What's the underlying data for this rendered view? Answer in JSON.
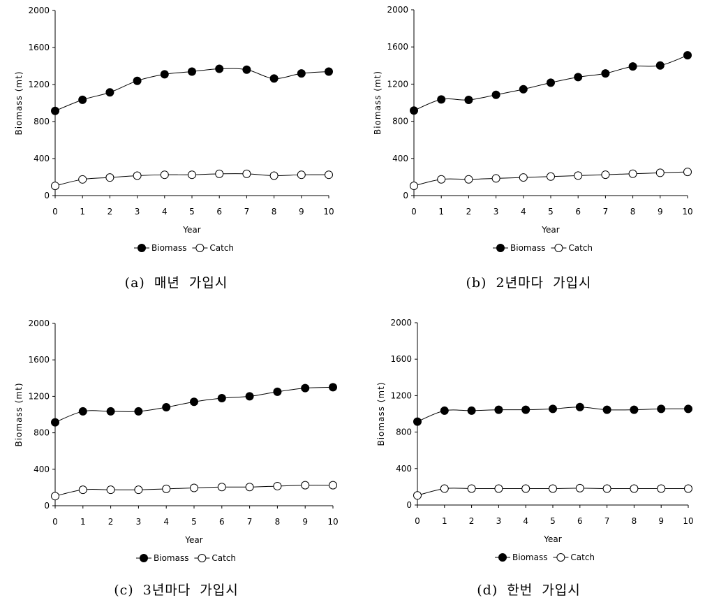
{
  "chart_data": [
    {
      "type": "line",
      "caption": "(a) 매년 가입시",
      "xlabel": "Year",
      "ylabel": "Biomass (mt)",
      "x": [
        0,
        1,
        2,
        3,
        4,
        5,
        6,
        7,
        8,
        9,
        10
      ],
      "xticks": [
        "0",
        "1",
        "2",
        "3",
        "4",
        "5",
        "6",
        "7",
        "8",
        "9",
        "10"
      ],
      "ylim": [
        0,
        2000
      ],
      "yticks": [
        "0",
        "400",
        "800",
        "1200",
        "1600",
        "2000"
      ],
      "legend_position": "bottom",
      "series": [
        {
          "name": "Biomass",
          "marker": "filled-circle",
          "values": [
            915,
            1035,
            1115,
            1240,
            1310,
            1340,
            1370,
            1360,
            1265,
            1320,
            1340
          ]
        },
        {
          "name": "Catch",
          "marker": "open-circle",
          "values": [
            105,
            175,
            195,
            215,
            225,
            225,
            235,
            235,
            215,
            225,
            225
          ]
        }
      ]
    },
    {
      "type": "line",
      "caption": "(b) 2년마다 가입시",
      "xlabel": "Year",
      "ylabel": "Biomass (mt)",
      "x": [
        0,
        1,
        2,
        3,
        4,
        5,
        6,
        7,
        8,
        9,
        10
      ],
      "xticks": [
        "0",
        "1",
        "2",
        "3",
        "4",
        "5",
        "6",
        "7",
        "8",
        "9",
        "10"
      ],
      "ylim": [
        0,
        2000
      ],
      "yticks": [
        "0",
        "400",
        "800",
        "1200",
        "1600",
        "2000"
      ],
      "legend_position": "bottom",
      "series": [
        {
          "name": "Biomass",
          "marker": "filled-circle",
          "values": [
            915,
            1035,
            1030,
            1085,
            1145,
            1215,
            1275,
            1315,
            1390,
            1400,
            1510
          ]
        },
        {
          "name": "Catch",
          "marker": "open-circle",
          "values": [
            105,
            175,
            175,
            185,
            195,
            205,
            215,
            225,
            235,
            245,
            255
          ]
        }
      ]
    },
    {
      "type": "line",
      "caption": "(c) 3년마다 가입시",
      "xlabel": "Year",
      "ylabel": "Biomass (mt)",
      "x": [
        0,
        1,
        2,
        3,
        4,
        5,
        6,
        7,
        8,
        9,
        10
      ],
      "xticks": [
        "0",
        "1",
        "2",
        "3",
        "4",
        "5",
        "6",
        "7",
        "8",
        "9",
        "10"
      ],
      "ylim": [
        0,
        2000
      ],
      "yticks": [
        "0",
        "400",
        "800",
        "1200",
        "1600",
        "2000"
      ],
      "legend_position": "bottom",
      "series": [
        {
          "name": "Biomass",
          "marker": "filled-circle",
          "values": [
            915,
            1035,
            1035,
            1035,
            1080,
            1140,
            1180,
            1200,
            1250,
            1290,
            1300
          ]
        },
        {
          "name": "Catch",
          "marker": "open-circle",
          "values": [
            105,
            175,
            175,
            175,
            185,
            195,
            205,
            205,
            215,
            225,
            225
          ]
        }
      ]
    },
    {
      "type": "line",
      "caption": "(d) 한번 가입시",
      "xlabel": "Year",
      "ylabel": "Biomass (mt)",
      "x": [
        0,
        1,
        2,
        3,
        4,
        5,
        6,
        7,
        8,
        9,
        10
      ],
      "xticks": [
        "0",
        "1",
        "2",
        "3",
        "4",
        "5",
        "6",
        "7",
        "8",
        "9",
        "10"
      ],
      "ylim": [
        0,
        2000
      ],
      "yticks": [
        "0",
        "400",
        "800",
        "1200",
        "1600",
        "2000"
      ],
      "legend_position": "bottom",
      "series": [
        {
          "name": "Biomass",
          "marker": "filled-circle",
          "values": [
            915,
            1035,
            1035,
            1045,
            1045,
            1055,
            1075,
            1045,
            1045,
            1055,
            1055
          ]
        },
        {
          "name": "Catch",
          "marker": "open-circle",
          "values": [
            105,
            180,
            180,
            180,
            180,
            180,
            185,
            180,
            180,
            180,
            180
          ]
        }
      ]
    }
  ]
}
